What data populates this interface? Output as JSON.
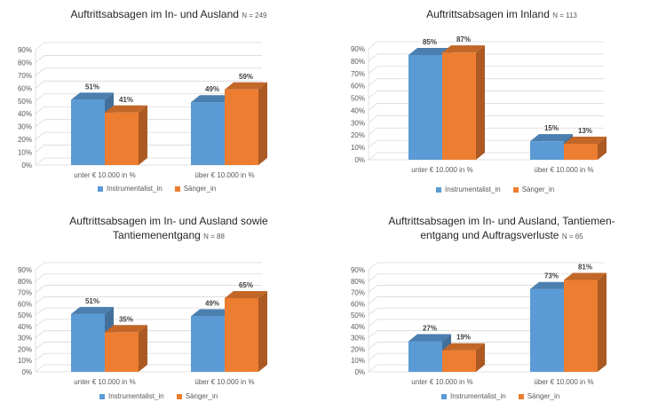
{
  "colors": {
    "Instrumentalist_in": "#5b9bd5",
    "Sänger_in": "#ed7d31"
  },
  "legend": [
    "Instrumentalist_in",
    "Sänger_in"
  ],
  "chart_data": [
    {
      "type": "bar",
      "title": "Auftrittsabsagen im In- und Ausland",
      "title_lines": [
        "Auftrittsabsagen im In- und Ausland"
      ],
      "n_label": "N = 249",
      "categories": [
        "unter € 10.000 in %",
        "über € 10.000 in %"
      ],
      "series": [
        {
          "name": "Instrumentalist_in",
          "values": [
            51,
            49
          ]
        },
        {
          "name": "Sänger_in",
          "values": [
            41,
            59
          ]
        }
      ],
      "data_labels": [
        [
          "51%",
          "49%"
        ],
        [
          "41%",
          "59%"
        ]
      ],
      "ylim": [
        0,
        90
      ],
      "yticks": [
        "0%",
        "10%",
        "20%",
        "30%",
        "40%",
        "50%",
        "60%",
        "70%",
        "80%",
        "90%"
      ],
      "grid": true,
      "legend_position": "bottom"
    },
    {
      "type": "bar",
      "title": "Auftrittsabsagen im Inland",
      "title_lines": [
        "Auftrittsabsagen im Inland"
      ],
      "n_label": "N = 113",
      "categories": [
        "unter € 10.000 in %",
        "über € 10.000 in %"
      ],
      "series": [
        {
          "name": "Instrumentalist_in",
          "values": [
            85,
            15
          ]
        },
        {
          "name": "Sänger_in",
          "values": [
            87,
            13
          ]
        }
      ],
      "data_labels": [
        [
          "85%",
          "15%"
        ],
        [
          "87%",
          "13%"
        ]
      ],
      "ylim": [
        0,
        90
      ],
      "yticks": [
        "0%",
        "10%",
        "20%",
        "30%",
        "40%",
        "50%",
        "60%",
        "70%",
        "80%",
        "90%"
      ],
      "grid": true,
      "legend_position": "bottom"
    },
    {
      "type": "bar",
      "title": "Auftrittsabsagen im In- und Ausland sowie Tantiemenentgang",
      "title_lines": [
        "Auftrittsabsagen im In- und Ausland sowie",
        "Tantiemenentgang"
      ],
      "n_label": "N = 88",
      "categories": [
        "unter € 10.000 in %",
        "über € 10.000 in %"
      ],
      "series": [
        {
          "name": "Instrumentalist_in",
          "values": [
            51,
            49
          ]
        },
        {
          "name": "Sänger_in",
          "values": [
            35,
            65
          ]
        }
      ],
      "data_labels": [
        [
          "51%",
          "49%"
        ],
        [
          "35%",
          "65%"
        ]
      ],
      "ylim": [
        0,
        90
      ],
      "yticks": [
        "0%",
        "10%",
        "20%",
        "30%",
        "40%",
        "50%",
        "60%",
        "70%",
        "80%",
        "90%"
      ],
      "grid": true,
      "legend_position": "bottom"
    },
    {
      "type": "bar",
      "title": "Auftrittsabsagen im In- und Ausland, Tantiemen-entgang und Auftragsverluste",
      "title_lines": [
        "Auftrittsabsagen im In- und Ausland,  Tantiemen-",
        "entgang und Auftragsverluste"
      ],
      "n_label": "N = 65",
      "categories": [
        "unter € 10.000 in %",
        "über € 10.000 in %"
      ],
      "series": [
        {
          "name": "Instrumentalist_in",
          "values": [
            27,
            73
          ]
        },
        {
          "name": "Sänger_in",
          "values": [
            19,
            81
          ]
        }
      ],
      "data_labels": [
        [
          "27%",
          "73%"
        ],
        [
          "19%",
          "81%"
        ]
      ],
      "ylim": [
        0,
        90
      ],
      "yticks": [
        "0%",
        "10%",
        "20%",
        "30%",
        "40%",
        "50%",
        "60%",
        "70%",
        "80%",
        "90%"
      ],
      "grid": true,
      "legend_position": "bottom"
    }
  ]
}
